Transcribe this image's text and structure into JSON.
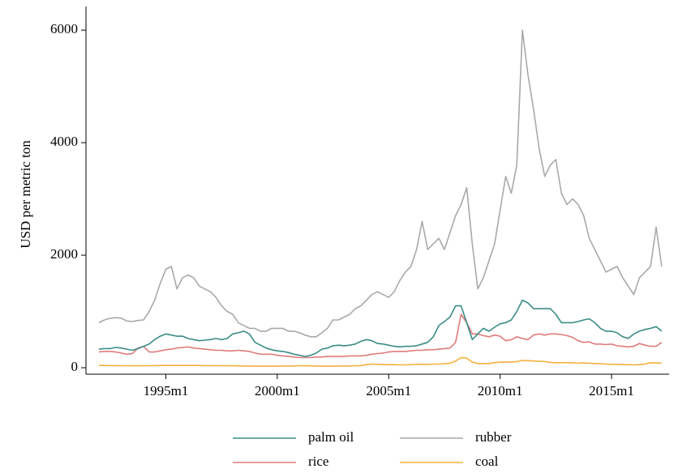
{
  "chart_data": {
    "type": "line",
    "y_label": "USD per metric ton",
    "x": [
      "1992m1",
      "1992m4",
      "1992m7",
      "1992m10",
      "1993m1",
      "1993m4",
      "1993m7",
      "1993m10",
      "1994m1",
      "1994m4",
      "1994m7",
      "1994m10",
      "1995m1",
      "1995m4",
      "1995m7",
      "1995m10",
      "1996m1",
      "1996m4",
      "1996m7",
      "1996m10",
      "1997m1",
      "1997m4",
      "1997m7",
      "1997m10",
      "1998m1",
      "1998m4",
      "1998m7",
      "1998m10",
      "1999m1",
      "1999m4",
      "1999m7",
      "1999m10",
      "2000m1",
      "2000m4",
      "2000m7",
      "2000m10",
      "2001m1",
      "2001m4",
      "2001m7",
      "2001m10",
      "2002m1",
      "2002m4",
      "2002m7",
      "2002m10",
      "2003m1",
      "2003m4",
      "2003m7",
      "2003m10",
      "2004m1",
      "2004m4",
      "2004m7",
      "2004m10",
      "2005m1",
      "2005m4",
      "2005m7",
      "2005m10",
      "2006m1",
      "2006m4",
      "2006m7",
      "2006m10",
      "2007m1",
      "2007m4",
      "2007m7",
      "2007m10",
      "2008m1",
      "2008m4",
      "2008m7",
      "2008m10",
      "2009m1",
      "2009m4",
      "2009m7",
      "2009m10",
      "2010m1",
      "2010m4",
      "2010m7",
      "2010m10",
      "2011m1",
      "2011m4",
      "2011m7",
      "2011m10",
      "2012m1",
      "2012m4",
      "2012m7",
      "2012m10",
      "2013m1",
      "2013m4",
      "2013m7",
      "2013m10",
      "2014m1",
      "2014m4",
      "2014m7",
      "2014m10",
      "2015m1",
      "2015m4",
      "2015m7",
      "2015m10",
      "2016m1",
      "2016m4",
      "2016m7",
      "2016m10",
      "2017m1",
      "2017m4"
    ],
    "series": [
      {
        "name": "palm oil",
        "color": "#3a8c87",
        "values": [
          330,
          340,
          340,
          360,
          350,
          330,
          310,
          340,
          380,
          420,
          500,
          560,
          600,
          580,
          560,
          560,
          520,
          500,
          480,
          490,
          500,
          520,
          500,
          520,
          600,
          620,
          650,
          600,
          450,
          400,
          350,
          320,
          300,
          290,
          270,
          240,
          220,
          200,
          220,
          260,
          330,
          350,
          390,
          400,
          390,
          400,
          420,
          470,
          500,
          480,
          430,
          420,
          400,
          380,
          370,
          380,
          380,
          390,
          420,
          450,
          550,
          750,
          820,
          900,
          1100,
          1100,
          800,
          500,
          600,
          700,
          650,
          720,
          780,
          800,
          850,
          1000,
          1200,
          1150,
          1050,
          1050,
          1050,
          1050,
          950,
          800,
          800,
          800,
          820,
          850,
          870,
          800,
          700,
          650,
          650,
          620,
          550,
          520,
          600,
          650,
          680,
          700,
          730,
          650
        ]
      },
      {
        "name": "rubber",
        "color": "#a9a9a9",
        "values": [
          800,
          850,
          880,
          890,
          880,
          830,
          820,
          840,
          850,
          1000,
          1200,
          1500,
          1750,
          1800,
          1400,
          1600,
          1650,
          1600,
          1450,
          1400,
          1350,
          1250,
          1100,
          1000,
          950,
          800,
          750,
          700,
          700,
          650,
          650,
          700,
          700,
          700,
          650,
          650,
          620,
          580,
          550,
          550,
          620,
          700,
          850,
          850,
          900,
          950,
          1050,
          1100,
          1200,
          1300,
          1350,
          1300,
          1250,
          1350,
          1550,
          1700,
          1800,
          2100,
          2600,
          2100,
          2200,
          2300,
          2100,
          2400,
          2700,
          2900,
          3200,
          2200,
          1400,
          1600,
          1900,
          2200,
          2800,
          3400,
          3100,
          3600,
          6000,
          5200,
          4600,
          3900,
          3400,
          3600,
          3700,
          3100,
          2900,
          3000,
          2900,
          2700,
          2300,
          2100,
          1900,
          1700,
          1750,
          1800,
          1600,
          1450,
          1300,
          1600,
          1700,
          1800,
          2500,
          1800
        ]
      },
      {
        "name": "rice",
        "color": "#e07b7b",
        "values": [
          280,
          290,
          290,
          280,
          260,
          240,
          250,
          350,
          380,
          280,
          280,
          300,
          320,
          330,
          350,
          360,
          370,
          350,
          340,
          330,
          320,
          310,
          310,
          300,
          300,
          310,
          300,
          290,
          260,
          240,
          240,
          240,
          220,
          210,
          200,
          190,
          180,
          180,
          180,
          190,
          190,
          200,
          200,
          200,
          200,
          210,
          210,
          210,
          220,
          240,
          250,
          260,
          280,
          290,
          290,
          290,
          300,
          310,
          310,
          320,
          320,
          330,
          340,
          350,
          450,
          950,
          800,
          600,
          600,
          570,
          550,
          580,
          560,
          480,
          500,
          550,
          520,
          500,
          580,
          600,
          580,
          600,
          600,
          590,
          570,
          540,
          480,
          450,
          460,
          420,
          420,
          410,
          420,
          390,
          380,
          370,
          380,
          430,
          400,
          380,
          380,
          450
        ]
      },
      {
        "name": "coal",
        "color": "#f4b13c",
        "values": [
          40,
          40,
          38,
          38,
          36,
          35,
          34,
          34,
          35,
          36,
          38,
          40,
          40,
          40,
          40,
          40,
          40,
          40,
          40,
          38,
          38,
          37,
          36,
          35,
          34,
          32,
          30,
          30,
          28,
          28,
          28,
          28,
          28,
          30,
          30,
          32,
          34,
          34,
          32,
          30,
          28,
          28,
          28,
          30,
          30,
          32,
          34,
          38,
          55,
          65,
          60,
          55,
          55,
          55,
          50,
          50,
          55,
          60,
          60,
          60,
          65,
          65,
          70,
          80,
          120,
          180,
          170,
          100,
          75,
          70,
          75,
          90,
          100,
          100,
          100,
          110,
          130,
          125,
          120,
          115,
          110,
          95,
          90,
          90,
          90,
          90,
          80,
          85,
          80,
          75,
          70,
          65,
          60,
          60,
          55,
          55,
          50,
          55,
          65,
          90,
          85,
          80
        ]
      }
    ],
    "xlim": [
      "1991m6",
      "2017m8"
    ],
    "xticks": [
      "1995m1",
      "2000m1",
      "2005m1",
      "2010m1",
      "2015m1"
    ],
    "ylim": [
      -115,
      6420
    ],
    "yticks": [
      0,
      2000,
      4000,
      6000
    ],
    "legend": "bottom"
  }
}
